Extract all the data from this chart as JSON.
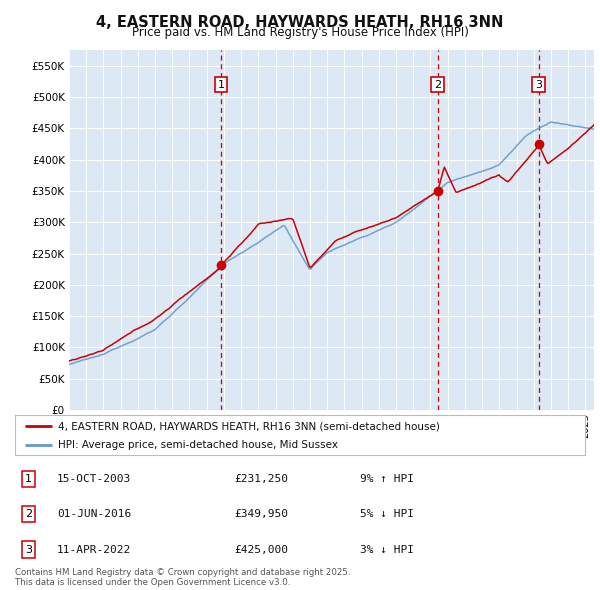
{
  "title": "4, EASTERN ROAD, HAYWARDS HEATH, RH16 3NN",
  "subtitle": "Price paid vs. HM Land Registry's House Price Index (HPI)",
  "bg_color": "#dce9f5",
  "red_color": "#cc0000",
  "blue_color": "#6699cc",
  "grid_color": "#ffffff",
  "sale_markers": [
    {
      "date_num": 2003.83,
      "price": 231250,
      "label": "1"
    },
    {
      "date_num": 2016.42,
      "price": 349950,
      "label": "2"
    },
    {
      "date_num": 2022.28,
      "price": 425000,
      "label": "3"
    }
  ],
  "legend_entries": [
    "4, EASTERN ROAD, HAYWARDS HEATH, RH16 3NN (semi-detached house)",
    "HPI: Average price, semi-detached house, Mid Sussex"
  ],
  "table_entries": [
    {
      "num": "1",
      "date": "15-OCT-2003",
      "price": "£231,250",
      "pct": "9% ↑ HPI"
    },
    {
      "num": "2",
      "date": "01-JUN-2016",
      "price": "£349,950",
      "pct": "5% ↓ HPI"
    },
    {
      "num": "3",
      "date": "11-APR-2022",
      "price": "£425,000",
      "pct": "3% ↓ HPI"
    }
  ],
  "footnote": "Contains HM Land Registry data © Crown copyright and database right 2025.\nThis data is licensed under the Open Government Licence v3.0.",
  "xmin": 1995,
  "xmax": 2025.5,
  "ymin": 0,
  "ymax": 575000,
  "yticks": [
    0,
    50000,
    100000,
    150000,
    200000,
    250000,
    300000,
    350000,
    400000,
    450000,
    500000,
    550000
  ]
}
